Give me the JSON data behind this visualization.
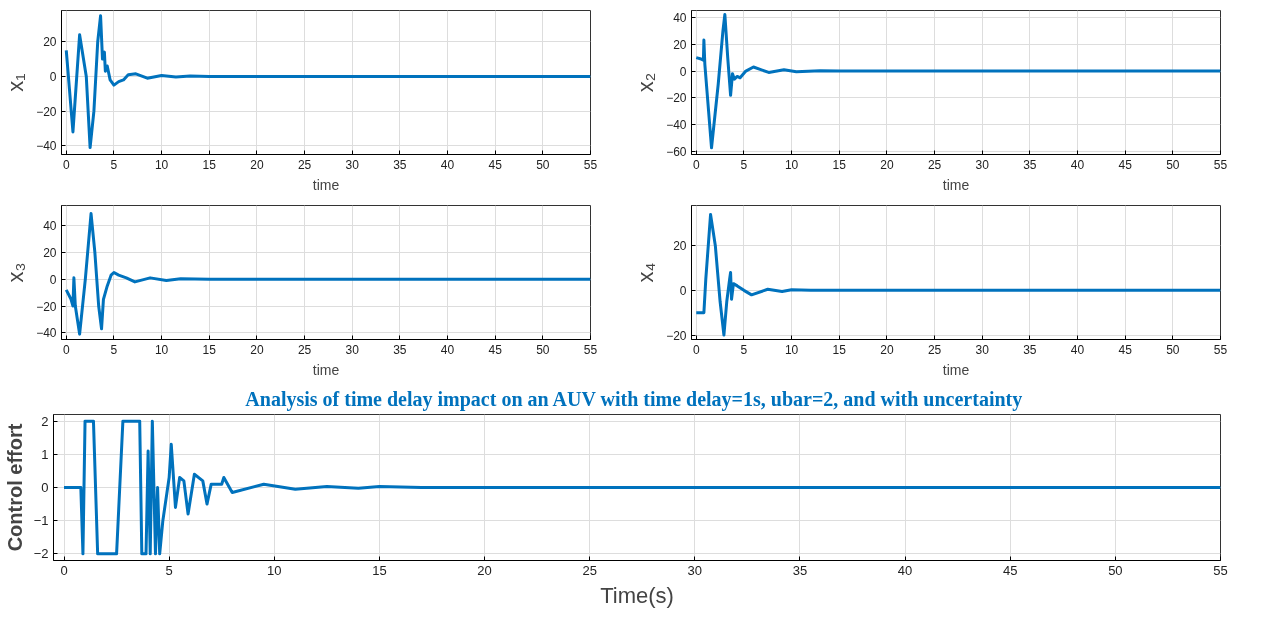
{
  "chart_data": [
    {
      "type": "line",
      "ylabel": "x₁",
      "xlabel": "time",
      "xlim": [
        -0.5,
        55
      ],
      "ylim": [
        -45,
        38
      ],
      "xticks": [
        0,
        5,
        10,
        15,
        20,
        25,
        30,
        35,
        40,
        45,
        50,
        55
      ],
      "yticks": [
        -40,
        -20,
        0,
        20
      ],
      "grid": true,
      "series": [
        {
          "color": "#0072bd",
          "x": [
            0,
            0.7,
            1.4,
            2.1,
            2.5,
            2.9,
            3.3,
            3.6,
            3.8,
            4.0,
            4.1,
            4.3,
            4.6,
            5.0,
            5.5,
            6.0,
            6.5,
            7.3,
            8.5,
            10,
            11.5,
            13,
            15,
            55
          ],
          "values": [
            15,
            -32,
            24,
            0,
            -41,
            -20,
            20,
            35,
            10,
            14,
            3,
            6,
            -2,
            -5,
            -3,
            -2,
            1,
            1.5,
            -1,
            0.5,
            -0.3,
            0.2,
            0,
            0
          ]
        }
      ]
    },
    {
      "type": "line",
      "ylabel": "x₂",
      "xlabel": "time",
      "xlim": [
        -0.5,
        55
      ],
      "ylim": [
        -62,
        45
      ],
      "xticks": [
        0,
        5,
        10,
        15,
        20,
        25,
        30,
        35,
        40,
        45,
        50,
        55
      ],
      "yticks": [
        -60,
        -40,
        -20,
        0,
        20,
        40
      ],
      "grid": true,
      "series": [
        {
          "color": "#0072bd",
          "x": [
            0,
            0.5,
            0.75,
            0.8,
            0.9,
            1.6,
            2.3,
            2.8,
            3.0,
            3.3,
            3.6,
            3.8,
            4.0,
            4.3,
            4.6,
            5.2,
            6.0,
            7.6,
            9.2,
            10.5,
            13,
            15,
            55
          ],
          "values": [
            10,
            9,
            8,
            23,
            5,
            -57,
            -10,
            30,
            42,
            10,
            -18,
            -2,
            -6,
            -4,
            -5,
            0,
            3,
            -1,
            1,
            -0.5,
            0.3,
            0,
            0
          ]
        }
      ]
    },
    {
      "type": "line",
      "ylabel": "x₃",
      "xlabel": "time",
      "xlim": [
        -0.5,
        55
      ],
      "ylim": [
        -45,
        55
      ],
      "xticks": [
        0,
        5,
        10,
        15,
        20,
        25,
        30,
        35,
        40,
        45,
        50,
        55
      ],
      "yticks": [
        -40,
        -20,
        0,
        20,
        40
      ],
      "grid": true,
      "series": [
        {
          "color": "#0072bd",
          "x": [
            0,
            0.5,
            0.7,
            0.8,
            0.95,
            1.4,
            2.0,
            2.6,
            3.0,
            3.4,
            3.7,
            3.9,
            4.3,
            4.7,
            5.0,
            5.5,
            6.3,
            7.2,
            8.8,
            10.5,
            12,
            15,
            55
          ],
          "values": [
            -8,
            -15,
            -20,
            1,
            -20,
            -41,
            0,
            49,
            20,
            -20,
            -37,
            -15,
            -5,
            3,
            5,
            3,
            1,
            -2,
            1,
            -1,
            0.3,
            0,
            0
          ]
        }
      ]
    },
    {
      "type": "line",
      "ylabel": "x₄",
      "xlabel": "time",
      "xlim": [
        -0.5,
        55
      ],
      "ylim": [
        -22,
        38
      ],
      "xticks": [
        0,
        5,
        10,
        15,
        20,
        25,
        30,
        35,
        40,
        45,
        50,
        55
      ],
      "yticks": [
        -20,
        0,
        20
      ],
      "grid": true,
      "series": [
        {
          "color": "#0072bd",
          "x": [
            0,
            0.8,
            1.0,
            1.5,
            2.0,
            2.5,
            2.9,
            3.2,
            3.5,
            3.6,
            3.7,
            3.9,
            4.3,
            5.0,
            5.8,
            7.5,
            9,
            10,
            12,
            55
          ],
          "values": [
            -10,
            -10,
            5,
            34,
            20,
            -5,
            -20,
            -5,
            5,
            8,
            -4,
            3,
            2,
            0,
            -2,
            0.5,
            -0.5,
            0.3,
            0,
            0
          ]
        }
      ]
    },
    {
      "type": "line",
      "title": "Analysis of time delay impact on an AUV  with time delay=1s, ubar=2, and with uncertainty",
      "ylabel": "Control effort",
      "xlabel": "Time(s)",
      "xlim": [
        -0.5,
        55
      ],
      "ylim": [
        -2.2,
        2.2
      ],
      "xticks": [
        0,
        5,
        10,
        15,
        20,
        25,
        30,
        35,
        40,
        45,
        50,
        55
      ],
      "yticks": [
        -2,
        -1,
        0,
        1,
        2
      ],
      "grid": true,
      "series": [
        {
          "color": "#0072bd",
          "x": [
            0,
            0.8,
            0.9,
            1.0,
            1.4,
            1.6,
            2.5,
            2.8,
            3.6,
            3.7,
            3.9,
            4.0,
            4.1,
            4.2,
            4.35,
            4.45,
            4.55,
            4.7,
            5.0,
            5.1,
            5.3,
            5.5,
            5.7,
            5.9,
            6.2,
            6.6,
            6.8,
            7.0,
            7.5,
            7.6,
            8,
            9.5,
            11,
            12.5,
            14,
            15,
            17,
            55
          ],
          "values": [
            0,
            0,
            -2,
            2,
            2,
            -2,
            -2,
            2,
            2,
            -2,
            -2,
            1.1,
            -2,
            2,
            -2,
            0,
            -2,
            -1,
            0.3,
            1.3,
            -0.6,
            0.3,
            0.2,
            -0.8,
            0.4,
            0.2,
            -0.5,
            0.1,
            0.1,
            0.3,
            -0.15,
            0.1,
            -0.05,
            0.03,
            -0.02,
            0.03,
            0,
            0
          ]
        }
      ]
    }
  ]
}
